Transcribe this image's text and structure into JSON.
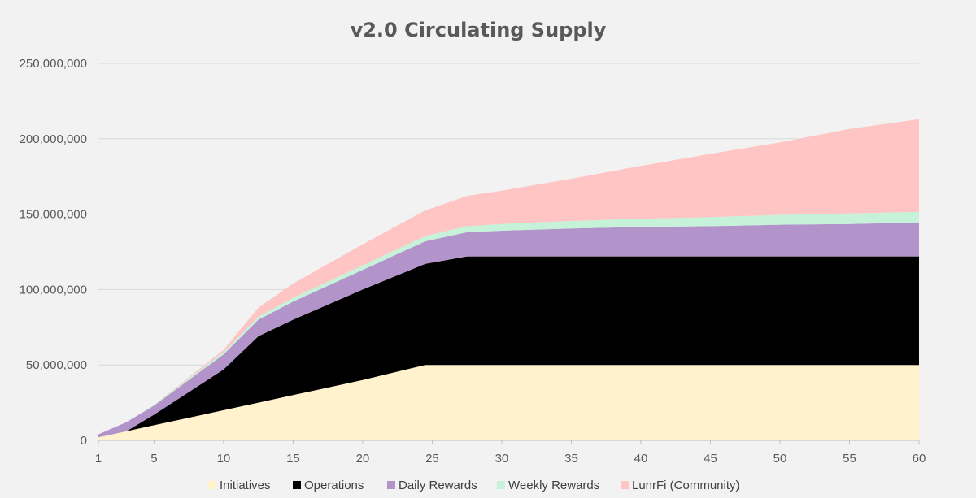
{
  "chart_data": {
    "type": "area",
    "stacked": true,
    "title": "v2.0 Circulating Supply",
    "xlabel": "",
    "ylabel": "",
    "xlim": [
      1,
      60
    ],
    "ylim": [
      0,
      250000000
    ],
    "x_ticks": [
      1,
      5,
      10,
      15,
      20,
      25,
      30,
      35,
      40,
      45,
      50,
      55,
      60
    ],
    "y_ticks": [
      0,
      50000000,
      100000000,
      150000000,
      200000000,
      250000000
    ],
    "y_tick_labels": [
      "0",
      "50,000,000",
      "100,000,000",
      "150,000,000",
      "200,000,000",
      "250,000,000"
    ],
    "grid": "horizontal",
    "legend": "bottom",
    "x": [
      1,
      3,
      5,
      10,
      12.5,
      15,
      20,
      24.5,
      27.5,
      30,
      35,
      40,
      45,
      50,
      55,
      60
    ],
    "series": [
      {
        "name": "Initiatives",
        "color": "#fff2cc",
        "values": [
          2000000,
          6000000,
          10000000,
          20000000,
          25000000,
          30000000,
          40000000,
          50000000,
          50000000,
          50000000,
          50000000,
          50000000,
          50000000,
          50000000,
          50000000,
          50000000
        ]
      },
      {
        "name": "Operations",
        "color": "#000000",
        "values": [
          0,
          0,
          7000000,
          27000000,
          44000000,
          50000000,
          60000000,
          67000000,
          72000000,
          72000000,
          72000000,
          72000000,
          72000000,
          72000000,
          72000000,
          72000000
        ]
      },
      {
        "name": "Daily Rewards",
        "color": "#b294cb",
        "values": [
          2000000,
          6000000,
          6000000,
          10000000,
          11000000,
          12000000,
          13000000,
          15000000,
          16000000,
          17000000,
          18500000,
          19500000,
          20000000,
          21000000,
          21500000,
          22500000
        ]
      },
      {
        "name": "Weekly Rewards",
        "color": "#c5f2d9",
        "values": [
          0,
          0,
          500000,
          1500000,
          2000000,
          2500000,
          3000000,
          3500000,
          4000000,
          4500000,
          5000000,
          5500000,
          6000000,
          6500000,
          7000000,
          7000000
        ]
      },
      {
        "name": "LunrFi (Community)",
        "color": "#ffc4c4",
        "values": [
          0,
          0,
          0,
          1500000,
          6000000,
          9500000,
          14000000,
          17000000,
          20000000,
          22000000,
          28000000,
          35000000,
          42000000,
          48000000,
          56000000,
          61500000
        ]
      }
    ]
  }
}
